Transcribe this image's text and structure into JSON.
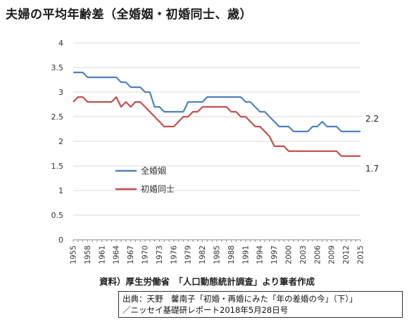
{
  "header": {
    "title": "夫婦の平均年齢差（全婚姻・初婚同士、歳）"
  },
  "chart_data": {
    "type": "line",
    "title": "夫婦の平均年齢差（全婚姻・初婚同士、歳）",
    "xlabel": "",
    "ylabel": "",
    "ylim": [
      0,
      4
    ],
    "yticks": [
      "0",
      "0.5",
      "1",
      "1.5",
      "2",
      "2.5",
      "3",
      "3.5",
      "4"
    ],
    "xticks": [
      "1955",
      "1958",
      "1961",
      "1964",
      "1967",
      "1970",
      "1973",
      "1976",
      "1979",
      "1982",
      "1985",
      "1988",
      "1991",
      "1994",
      "1997",
      "2000",
      "2003",
      "2006",
      "2009",
      "2012",
      "2015"
    ],
    "grid": "horizontal",
    "legend_position": "center-left",
    "x": [
      1955,
      1956,
      1957,
      1958,
      1959,
      1960,
      1961,
      1962,
      1963,
      1964,
      1965,
      1966,
      1967,
      1968,
      1969,
      1970,
      1971,
      1972,
      1973,
      1974,
      1975,
      1976,
      1977,
      1978,
      1979,
      1980,
      1981,
      1982,
      1983,
      1984,
      1985,
      1986,
      1987,
      1988,
      1989,
      1990,
      1991,
      1992,
      1993,
      1994,
      1995,
      1996,
      1997,
      1998,
      1999,
      2000,
      2001,
      2002,
      2003,
      2004,
      2005,
      2006,
      2007,
      2008,
      2009,
      2010,
      2011,
      2012,
      2013,
      2014,
      2015
    ],
    "series": [
      {
        "name": "全婚姻",
        "color": "#4f81bd",
        "values": [
          3.4,
          3.4,
          3.4,
          3.3,
          3.3,
          3.3,
          3.3,
          3.3,
          3.3,
          3.3,
          3.2,
          3.2,
          3.1,
          3.1,
          3.1,
          3.0,
          3.0,
          2.7,
          2.7,
          2.6,
          2.6,
          2.6,
          2.6,
          2.6,
          2.8,
          2.8,
          2.8,
          2.8,
          2.9,
          2.9,
          2.9,
          2.9,
          2.9,
          2.9,
          2.9,
          2.9,
          2.8,
          2.8,
          2.7,
          2.6,
          2.6,
          2.5,
          2.4,
          2.3,
          2.3,
          2.3,
          2.2,
          2.2,
          2.2,
          2.2,
          2.3,
          2.3,
          2.4,
          2.3,
          2.3,
          2.3,
          2.2,
          2.2,
          2.2,
          2.2,
          2.2
        ],
        "end_label": "2.2"
      },
      {
        "name": "初婚同士",
        "color": "#c0504d",
        "values": [
          2.8,
          2.9,
          2.9,
          2.8,
          2.8,
          2.8,
          2.8,
          2.8,
          2.8,
          2.9,
          2.7,
          2.8,
          2.7,
          2.8,
          2.8,
          2.7,
          2.6,
          2.5,
          2.4,
          2.3,
          2.3,
          2.3,
          2.4,
          2.5,
          2.5,
          2.6,
          2.6,
          2.7,
          2.7,
          2.7,
          2.7,
          2.7,
          2.7,
          2.6,
          2.6,
          2.5,
          2.5,
          2.4,
          2.3,
          2.3,
          2.2,
          2.1,
          1.9,
          1.9,
          1.9,
          1.8,
          1.8,
          1.8,
          1.8,
          1.8,
          1.8,
          1.8,
          1.8,
          1.8,
          1.8,
          1.8,
          1.7,
          1.7,
          1.7,
          1.7,
          1.7
        ],
        "end_label": "1.7"
      }
    ]
  },
  "footer": {
    "source": "資料）厚生労働省　「人口動態統計調査」より筆者作成",
    "citation_line1": "出典：天野　馨南子「初婚・再婚にみた「年の差婚の今」（下）」",
    "citation_line2": "／ニッセイ基礎研レポート2018年5月28日号"
  }
}
